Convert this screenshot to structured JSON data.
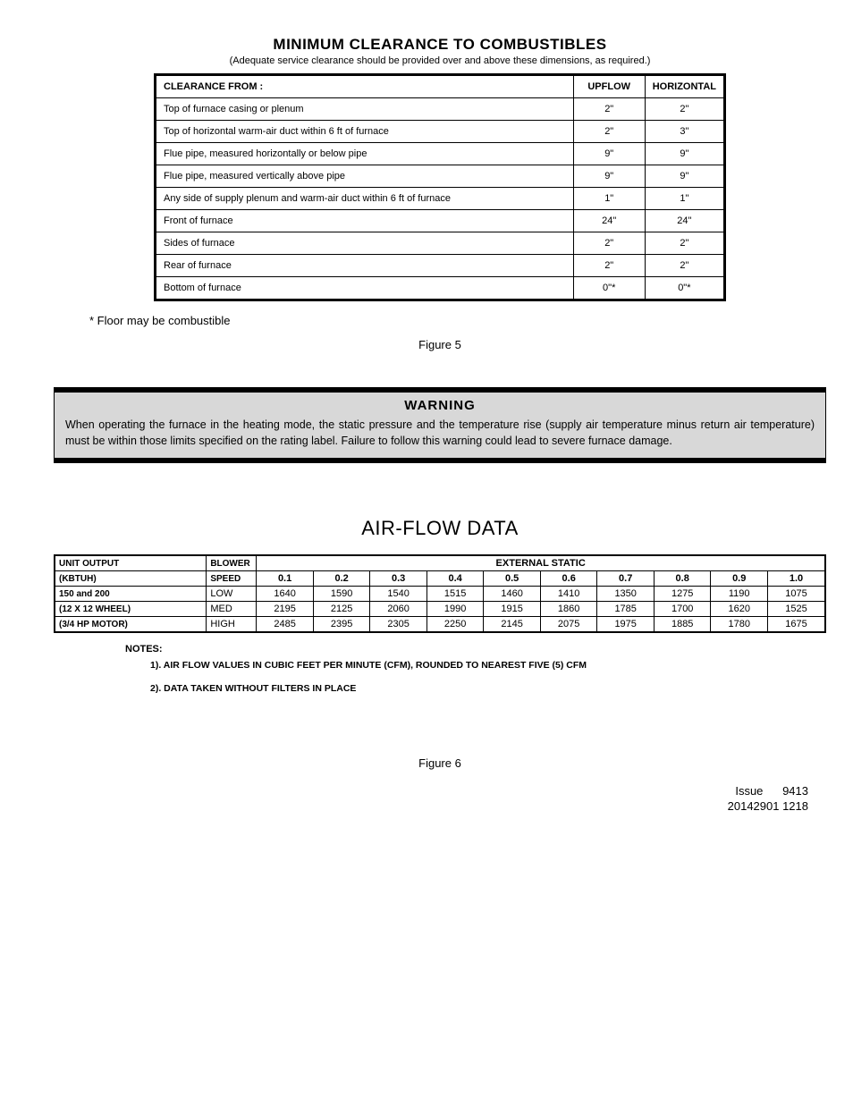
{
  "section1": {
    "title": "MINIMUM CLEARANCE TO COMBUSTIBLES",
    "subtitle": "(Adequate service clearance should be provided over and above these dimensions, as required.)",
    "headers": {
      "c0": "CLEARANCE FROM :",
      "c1": "UPFLOW",
      "c2": "HORIZONTAL"
    },
    "rows": [
      {
        "label": "Top of furnace casing or plenum",
        "upflow": "2\"",
        "horiz": "2\""
      },
      {
        "label": "Top of horizontal warm-air duct within 6 ft of furnace",
        "upflow": "2\"",
        "horiz": "3\""
      },
      {
        "label": "Flue pipe, measured horizontally or below pipe",
        "upflow": "9\"",
        "horiz": "9\""
      },
      {
        "label": "Flue pipe, measured vertically above pipe",
        "upflow": "9\"",
        "horiz": "9\""
      },
      {
        "label": "Any side of supply plenum and warm-air duct within 6 ft of furnace",
        "upflow": "1\"",
        "horiz": "1\""
      },
      {
        "label": "Front of furnace",
        "upflow": "24\"",
        "horiz": "24\""
      },
      {
        "label": "Sides of furnace",
        "upflow": "2\"",
        "horiz": "2\""
      },
      {
        "label": "Rear of furnace",
        "upflow": "2\"",
        "horiz": "2\""
      },
      {
        "label": "Bottom of furnace",
        "upflow": "0\"*",
        "horiz": "0\"*"
      }
    ],
    "footnote": "*   Floor may be combustible",
    "figure": "Figure 5"
  },
  "warning": {
    "title": "WARNING",
    "text": "When operating the furnace in the heating mode, the static pressure and the temperature rise (supply air temperature minus return air temperature) must be within those limits specified on the rating label.  Failure to follow this warning could lead to severe furnace damage."
  },
  "section2": {
    "title": "AIR-FLOW DATA",
    "header_unit_output": "UNIT OUTPUT",
    "header_kbtuh": "(KBTUH)",
    "header_blower1": "BLOWER",
    "header_blower2": "SPEED",
    "header_ext_static": "EXTERNAL STATIC",
    "static_cols": [
      "0.1",
      "0.2",
      "0.3",
      "0.4",
      "0.5",
      "0.6",
      "0.7",
      "0.8",
      "0.9",
      "1.0"
    ],
    "unit_lines": [
      "150 and 200",
      "(12 X 12 WHEEL)",
      "(3/4 HP MOTOR)"
    ],
    "rows": [
      {
        "speed": "LOW",
        "v": [
          "1640",
          "1590",
          "1540",
          "1515",
          "1460",
          "1410",
          "1350",
          "1275",
          "1190",
          "1075"
        ]
      },
      {
        "speed": "MED",
        "v": [
          "2195",
          "2125",
          "2060",
          "1990",
          "1915",
          "1860",
          "1785",
          "1700",
          "1620",
          "1525"
        ]
      },
      {
        "speed": "HIGH",
        "v": [
          "2485",
          "2395",
          "2305",
          "2250",
          "2145",
          "2075",
          "1975",
          "1885",
          "1780",
          "1675"
        ]
      }
    ],
    "notes_hdr": "NOTES:",
    "note1": "1). AIR FLOW VALUES IN CUBIC FEET PER MINUTE (CFM),  ROUNDED TO NEAREST FIVE (5) CFM",
    "note2": "2). DATA TAKEN WITHOUT FILTERS IN PLACE",
    "figure": "Figure 6"
  },
  "footer": {
    "line1": "Issue      9413",
    "line2": "20142901 1218"
  }
}
